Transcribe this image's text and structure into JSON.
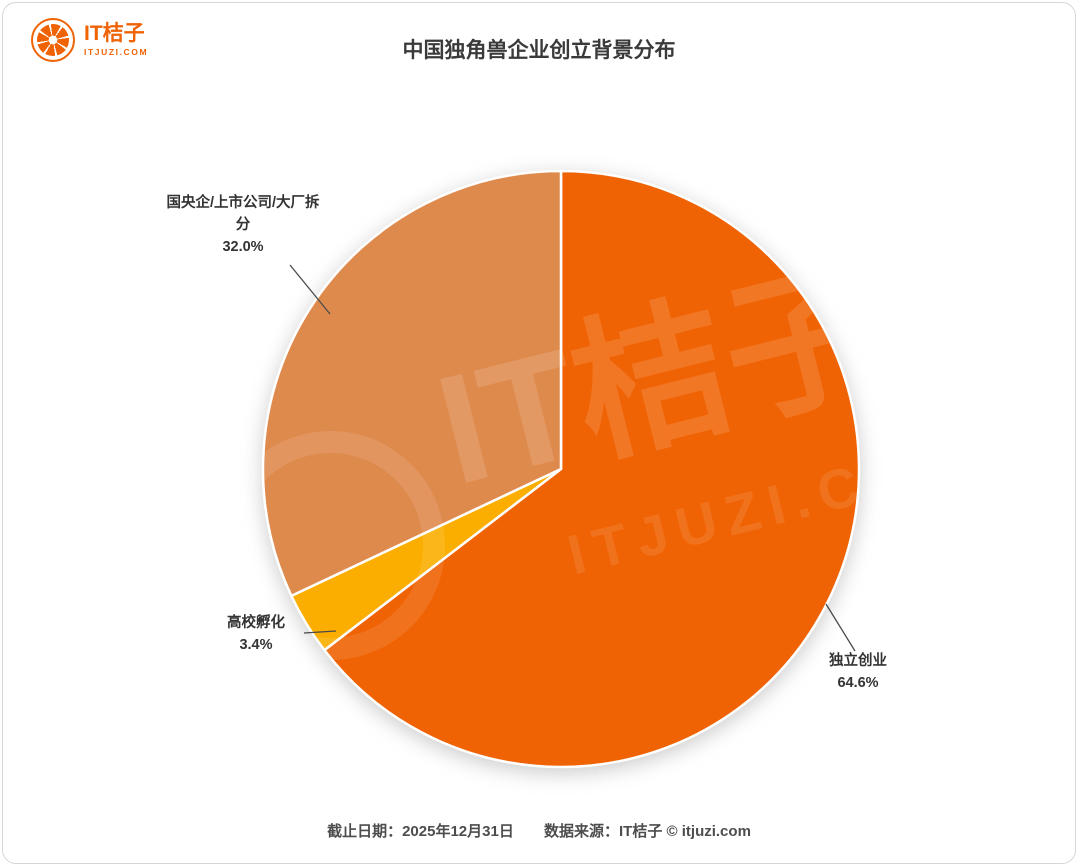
{
  "header": {
    "logo_title": "IT桔子",
    "logo_subtitle": "ITJUZI.COM",
    "title": "中国独角兽企业创立背景分布"
  },
  "chart_data": {
    "type": "pie",
    "title": "中国独角兽企业创立背景分布",
    "unit": "%",
    "direction": "clockwise",
    "start_angle": "12-o'clock",
    "legend_position": "none",
    "labels_on_chart": true,
    "slices": [
      {
        "label": "独立创业",
        "value": 64.6,
        "display": "64.6%",
        "color": "#F06304"
      },
      {
        "label": "高校孵化",
        "value": 3.4,
        "display": "3.4%",
        "color": "#FBAE00"
      },
      {
        "label": "国央企/上市公司/大厂拆分",
        "value": 32.0,
        "display": "32.0%",
        "color": "#DF8A4D"
      }
    ]
  },
  "watermark": {
    "text": "IT桔子",
    "subtext": "ITJUZI.COM"
  },
  "footer": {
    "date": "截止日期：2025年12月31日",
    "source": "数据来源：IT桔子 © itjuzi.com"
  }
}
